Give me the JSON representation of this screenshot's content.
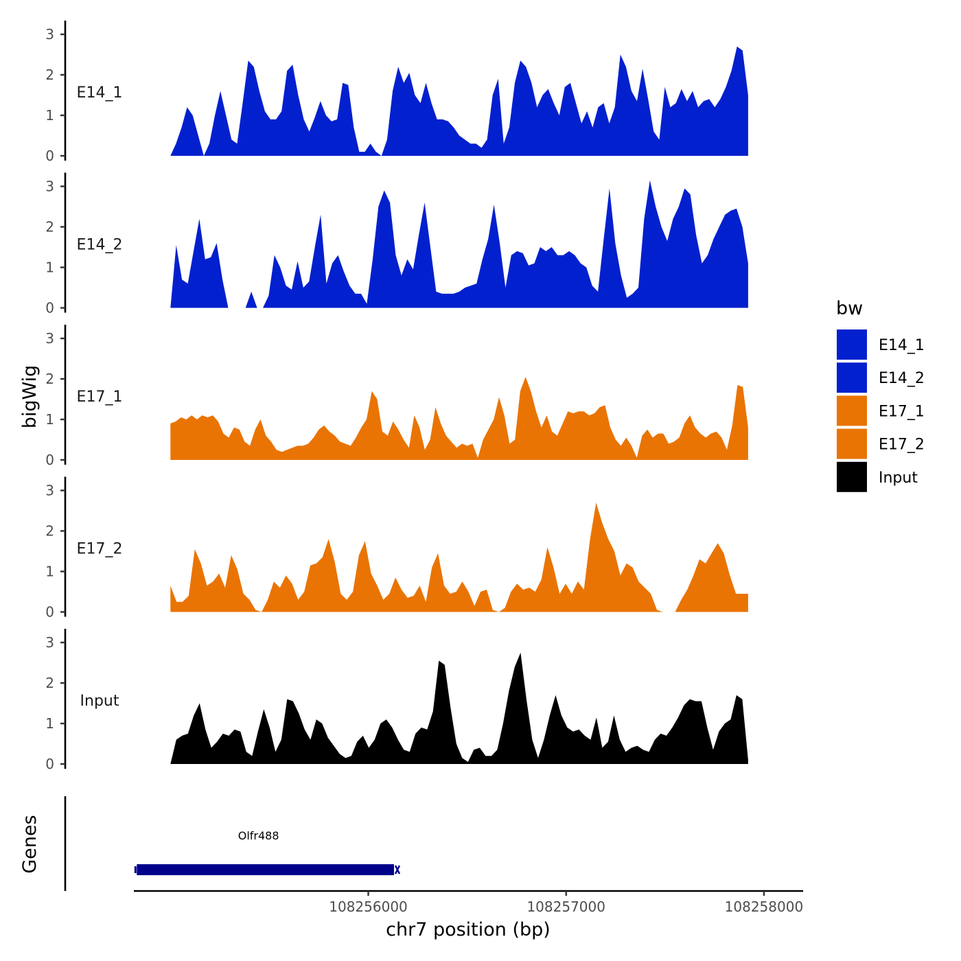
{
  "chart_data": {
    "type": "area",
    "title": "",
    "xlabel": "chr7 position (bp)",
    "ylabel": "bigWig",
    "genes_panel_label": "Genes",
    "xlim": [
      108254815,
      108258198
    ],
    "x_ticks": [
      108256000,
      108257000,
      108258000
    ],
    "x_tick_labels": [
      "108256000",
      "108257000",
      "108258000"
    ],
    "ylim": [
      0,
      3.3
    ],
    "y_ticks": [
      0,
      1,
      2,
      3
    ],
    "y_tick_labels": [
      "0",
      "1",
      "2",
      "3"
    ],
    "legend": {
      "title": "bw",
      "position": "right",
      "entries": [
        {
          "label": "E14_1",
          "color": "#0320CE"
        },
        {
          "label": "E14_2",
          "color": "#0320CE"
        },
        {
          "label": "E17_1",
          "color": "#E97404"
        },
        {
          "label": "E17_2",
          "color": "#E97404"
        },
        {
          "label": "Input",
          "color": "#000000"
        }
      ]
    },
    "series": [
      {
        "name": "E14_1",
        "label": "E14_1",
        "color": "#0320CE",
        "x_start": 108255000,
        "x_end": 108257920,
        "values": [
          0.0,
          0.3,
          0.7,
          1.2,
          1.0,
          0.5,
          0.0,
          0.3,
          1.0,
          1.6,
          1.0,
          0.4,
          0.3,
          1.3,
          2.35,
          2.2,
          1.6,
          1.1,
          0.9,
          0.9,
          1.1,
          2.1,
          2.25,
          1.5,
          0.9,
          0.6,
          0.95,
          1.35,
          1.0,
          0.85,
          0.9,
          1.8,
          1.75,
          0.7,
          0.1,
          0.1,
          0.3,
          0.1,
          0.0,
          0.4,
          1.6,
          2.2,
          1.8,
          2.05,
          1.5,
          1.3,
          1.8,
          1.3,
          0.9,
          0.9,
          0.85,
          0.7,
          0.5,
          0.4,
          0.3,
          0.3,
          0.2,
          0.4,
          1.5,
          1.9,
          0.3,
          0.7,
          1.8,
          2.35,
          2.2,
          1.8,
          1.2,
          1.5,
          1.65,
          1.3,
          1.0,
          1.7,
          1.8,
          1.3,
          0.8,
          1.1,
          0.7,
          1.2,
          1.3,
          0.8,
          1.2,
          2.5,
          2.2,
          1.6,
          1.35,
          2.15,
          1.4,
          0.6,
          0.4,
          1.7,
          1.2,
          1.3,
          1.65,
          1.35,
          1.6,
          1.2,
          1.35,
          1.4,
          1.2,
          1.4,
          1.7,
          2.1,
          2.7,
          2.6,
          1.5
        ]
      },
      {
        "name": "E14_2",
        "label": "E14_2",
        "color": "#0320CE",
        "x_start": 108255000,
        "x_end": 108257920,
        "values": [
          0.0,
          1.55,
          0.7,
          0.6,
          1.4,
          2.2,
          1.2,
          1.25,
          1.6,
          0.7,
          0.0,
          0.0,
          0.0,
          0.0,
          0.4,
          0.0,
          0.0,
          0.3,
          1.3,
          1.0,
          0.55,
          0.45,
          1.15,
          0.5,
          0.65,
          1.5,
          2.3,
          0.6,
          1.1,
          1.3,
          0.9,
          0.55,
          0.35,
          0.35,
          0.1,
          1.2,
          2.5,
          2.9,
          2.6,
          1.3,
          0.8,
          1.2,
          0.95,
          1.8,
          2.6,
          1.5,
          0.4,
          0.35,
          0.35,
          0.35,
          0.4,
          0.5,
          0.55,
          0.6,
          1.2,
          1.7,
          2.55,
          1.6,
          0.5,
          1.3,
          1.4,
          1.35,
          1.05,
          1.1,
          1.5,
          1.4,
          1.5,
          1.3,
          1.3,
          1.4,
          1.3,
          1.1,
          1.0,
          0.55,
          0.4,
          1.7,
          2.95,
          1.6,
          0.8,
          0.25,
          0.35,
          0.5,
          2.2,
          3.15,
          2.5,
          2.0,
          1.65,
          2.2,
          2.5,
          2.95,
          2.8,
          1.8,
          1.1,
          1.3,
          1.7,
          2.0,
          2.3,
          2.4,
          2.45,
          2.0,
          1.1
        ]
      },
      {
        "name": "E17_1",
        "label": "E17_1",
        "color": "#E97404",
        "x_start": 108255000,
        "x_end": 108257920,
        "values": [
          0.9,
          0.95,
          1.05,
          1.0,
          1.1,
          1.0,
          1.1,
          1.05,
          1.1,
          0.95,
          0.65,
          0.55,
          0.8,
          0.75,
          0.45,
          0.35,
          0.75,
          1.0,
          0.6,
          0.45,
          0.25,
          0.2,
          0.25,
          0.3,
          0.35,
          0.35,
          0.4,
          0.55,
          0.75,
          0.85,
          0.7,
          0.6,
          0.45,
          0.4,
          0.35,
          0.55,
          0.8,
          1.0,
          1.7,
          1.5,
          0.7,
          0.6,
          0.95,
          0.75,
          0.5,
          0.3,
          1.1,
          0.8,
          0.25,
          0.5,
          1.3,
          0.9,
          0.6,
          0.45,
          0.3,
          0.4,
          0.35,
          0.4,
          0.05,
          0.5,
          0.75,
          1.0,
          1.55,
          1.1,
          0.4,
          0.5,
          1.7,
          2.05,
          1.7,
          1.2,
          0.8,
          1.1,
          0.7,
          0.6,
          0.9,
          1.2,
          1.15,
          1.2,
          1.2,
          1.1,
          1.15,
          1.3,
          1.35,
          0.8,
          0.5,
          0.35,
          0.55,
          0.35,
          0.05,
          0.6,
          0.75,
          0.55,
          0.65,
          0.65,
          0.4,
          0.45,
          0.55,
          0.9,
          1.1,
          0.8,
          0.65,
          0.55,
          0.65,
          0.7,
          0.55,
          0.25,
          0.85,
          1.85,
          1.8,
          0.8
        ]
      },
      {
        "name": "E17_2",
        "label": "E17_2",
        "color": "#E97404",
        "x_start": 108255000,
        "x_end": 108257920,
        "values": [
          0.65,
          0.25,
          0.25,
          0.4,
          1.55,
          1.2,
          0.65,
          0.75,
          0.95,
          0.6,
          1.4,
          1.05,
          0.45,
          0.3,
          0.05,
          0.0,
          0.3,
          0.75,
          0.6,
          0.9,
          0.7,
          0.3,
          0.5,
          1.15,
          1.2,
          1.35,
          1.8,
          1.25,
          0.45,
          0.3,
          0.5,
          1.4,
          1.75,
          0.95,
          0.65,
          0.3,
          0.45,
          0.85,
          0.55,
          0.35,
          0.4,
          0.65,
          0.25,
          1.1,
          1.45,
          0.65,
          0.45,
          0.5,
          0.75,
          0.5,
          0.15,
          0.5,
          0.55,
          0.05,
          0.0,
          0.1,
          0.5,
          0.7,
          0.55,
          0.6,
          0.5,
          0.8,
          1.6,
          1.1,
          0.45,
          0.7,
          0.45,
          0.75,
          0.55,
          1.8,
          2.7,
          2.2,
          1.8,
          1.5,
          0.9,
          1.2,
          1.1,
          0.75,
          0.6,
          0.45,
          0.05,
          0.0,
          0.0,
          0.0,
          0.3,
          0.55,
          0.9,
          1.3,
          1.2,
          1.45,
          1.7,
          1.45,
          0.9,
          0.45,
          0.45,
          0.45
        ]
      },
      {
        "name": "Input",
        "label": "Input",
        "color": "#000000",
        "x_start": 108255000,
        "x_end": 108257920,
        "values": [
          0.0,
          0.6,
          0.7,
          0.75,
          1.2,
          1.5,
          0.85,
          0.4,
          0.55,
          0.75,
          0.7,
          0.85,
          0.8,
          0.3,
          0.2,
          0.8,
          1.35,
          0.9,
          0.3,
          0.6,
          1.6,
          1.55,
          1.25,
          0.85,
          0.6,
          1.1,
          1.0,
          0.65,
          0.45,
          0.25,
          0.15,
          0.2,
          0.55,
          0.7,
          0.4,
          0.6,
          1.0,
          1.1,
          0.9,
          0.6,
          0.35,
          0.3,
          0.75,
          0.9,
          0.85,
          1.3,
          2.55,
          2.45,
          1.4,
          0.5,
          0.15,
          0.05,
          0.35,
          0.4,
          0.2,
          0.2,
          0.35,
          1.0,
          1.8,
          2.4,
          2.75,
          1.6,
          0.6,
          0.15,
          0.6,
          1.2,
          1.7,
          1.2,
          0.9,
          0.8,
          0.85,
          0.7,
          0.6,
          1.15,
          0.4,
          0.55,
          1.2,
          0.6,
          0.3,
          0.4,
          0.45,
          0.35,
          0.3,
          0.6,
          0.75,
          0.7,
          0.9,
          1.15,
          1.45,
          1.6,
          1.55,
          1.55,
          0.9,
          0.35,
          0.8,
          1.0,
          1.1,
          1.7,
          1.6,
          0.1
        ]
      }
    ],
    "genes": [
      {
        "name": "Olfr488",
        "start": 108254830,
        "end": 108256130,
        "strand": "-",
        "color": "#00008B"
      }
    ]
  }
}
